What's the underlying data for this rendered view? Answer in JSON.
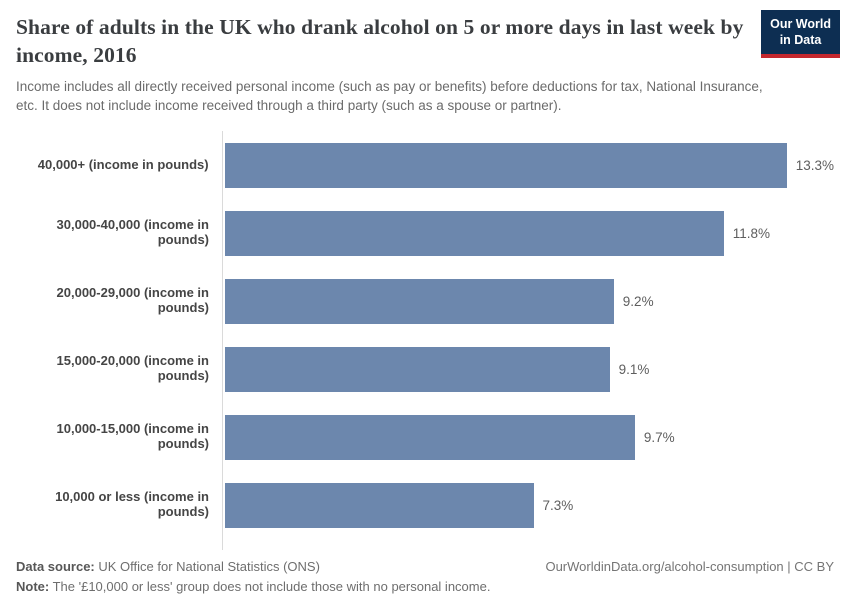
{
  "header": {
    "title": "Share of adults in the UK who drank alcohol on 5 or more days in last week by income, 2016",
    "subtitle": "Income includes all directly received personal income (such as pay or benefits) before deductions for tax, National Insurance, etc. It does not include income received through a third party (such as a spouse or partner).",
    "logo": {
      "line1": "Our World",
      "line2": "in Data"
    }
  },
  "chart_data": {
    "type": "bar",
    "orientation": "horizontal",
    "title": "Share of adults in the UK who drank alcohol on 5 or more days in last week by income, 2016",
    "xlabel": "",
    "ylabel": "",
    "xlim": [
      0,
      13.3
    ],
    "grid": false,
    "legend": false,
    "categories": [
      "40,000+ (income in pounds)",
      "30,000-40,000 (income in pounds)",
      "20,000-29,000 (income in pounds)",
      "15,000-20,000 (income in pounds)",
      "10,000-15,000 (income in pounds)",
      "10,000 or less (income in pounds)"
    ],
    "values": [
      13.3,
      11.8,
      9.2,
      9.1,
      9.7,
      7.3
    ],
    "value_labels": [
      "13.3%",
      "11.8%",
      "9.2%",
      "9.1%",
      "9.7%",
      "7.3%"
    ]
  },
  "footer": {
    "datasource_label": "Data source:",
    "datasource_value": " UK Office for National Statistics (ONS)",
    "link": "OurWorldinData.org/alcohol-consumption | CC BY",
    "note_label": "Note:",
    "note_value": " The '£10,000 or less' group does not include those with no personal income."
  },
  "colors": {
    "bar": "#6c87ad",
    "logo_background": "#0d2e52",
    "logo_stripe": "#c4272d",
    "axis_line": "#dadada"
  }
}
